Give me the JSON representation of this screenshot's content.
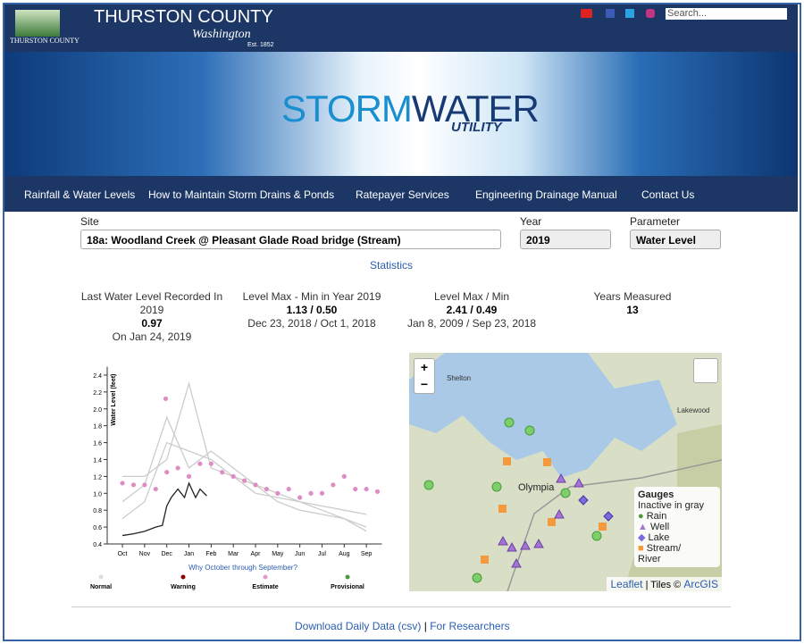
{
  "header": {
    "logo_text": "THURSTON COUNTY",
    "title": "THURSTON COUNTY",
    "subtitle": "Washington",
    "established": "Est. 1852",
    "search_placeholder": "Search..."
  },
  "banner": {
    "parts": [
      "STORM",
      "WATER"
    ],
    "line2": "UTILITY"
  },
  "nav": [
    "Rainfall & Water Levels",
    "How to Maintain Storm Drains & Ponds",
    "Ratepayer Services",
    "Engineering Drainage Manual",
    "Contact Us"
  ],
  "form": {
    "site_label": "Site",
    "site_value": "18a: Woodland Creek @ Pleasant Glade Road bridge (Stream)",
    "year_label": "Year",
    "year_value": "2019",
    "parameter_label": "Parameter",
    "parameter_value": "Water Level"
  },
  "statistics_link": "Statistics",
  "stats": [
    {
      "label": "Last Water Level Recorded In 2019",
      "value": "0.97",
      "detail": "On Jan 24, 2019"
    },
    {
      "label": "Level Max - Min in Year 2019",
      "value": "1.13 / 0.50",
      "detail": "Dec 23, 2018 / Oct 1, 2018"
    },
    {
      "label": "Level Max / Min",
      "value": "2.41 / 0.49",
      "detail": "Jan 8, 2009 / Sep 23, 2018"
    },
    {
      "label": "Years Measured",
      "value": "13"
    }
  ],
  "chart": {
    "type": "line",
    "y_label": "Water Level (feet)",
    "ylim": [
      0.4,
      2.5
    ],
    "yticks": [
      0.4,
      0.6,
      0.8,
      {
        "value": 1,
        "label": "1.0"
      },
      1.2,
      1.4,
      1.6,
      1.8,
      {
        "value": 2,
        "label": "2.0"
      },
      2.2,
      2.4
    ],
    "xlim": [
      -0.3,
      11.7
    ],
    "xticks": [
      {
        "value": 0,
        "label": "Oct"
      },
      {
        "value": 1,
        "label": "Nov"
      },
      {
        "value": 2,
        "label": "Dec"
      },
      {
        "value": 3,
        "label": "Jan"
      },
      {
        "value": 4,
        "label": "Feb"
      },
      {
        "value": 5,
        "label": "Mar"
      },
      {
        "value": 6,
        "label": "Apr"
      },
      {
        "value": 7,
        "label": "May"
      },
      {
        "value": 8,
        "label": "Jun"
      },
      {
        "value": 9,
        "label": "Jul"
      },
      {
        "value": 10,
        "label": "Aug"
      },
      {
        "value": 11,
        "label": "Sep"
      }
    ],
    "series": [
      {
        "color": "#cccccc",
        "style": "line",
        "x": [
          0,
          1,
          2,
          3,
          4,
          5,
          6,
          7,
          8,
          9,
          10,
          11
        ],
        "values": [
          0.7,
          0.9,
          1.6,
          1.5,
          1.4,
          1.2,
          1.1,
          0.9,
          0.8,
          0.75,
          0.7,
          0.6
        ]
      },
      {
        "color": "#cccccc",
        "style": "line",
        "x": [
          0,
          1,
          2,
          3,
          4,
          5,
          6,
          7,
          8,
          9,
          10,
          11
        ],
        "values": [
          0.9,
          1.1,
          1.9,
          1.3,
          1.5,
          1.3,
          1.1,
          1.0,
          0.9,
          0.85,
          0.8,
          0.75
        ]
      },
      {
        "color": "#cccccc",
        "style": "line",
        "x": [
          0,
          1,
          2,
          3,
          4,
          5,
          6,
          7,
          8,
          9,
          10,
          11
        ],
        "values": [
          1.2,
          1.2,
          1.4,
          2.3,
          1.3,
          1.2,
          1.0,
          0.95,
          0.9,
          0.8,
          0.7,
          0.55
        ]
      },
      {
        "color": "#e08cc4",
        "style": "dots",
        "x": [
          0,
          0.5,
          1,
          1.5,
          1.95,
          2,
          2.5,
          3,
          3.5,
          4,
          4.5,
          5,
          5.5,
          6,
          6.5,
          7,
          7.5,
          8,
          8.5,
          9,
          9.5,
          10,
          10.5,
          11,
          11.5
        ],
        "values": [
          1.12,
          1.1,
          1.1,
          1.05,
          2.12,
          1.25,
          1.3,
          1.2,
          1.35,
          1.35,
          1.25,
          1.2,
          1.15,
          1.1,
          1.05,
          1.0,
          1.05,
          0.95,
          1.0,
          1.0,
          1.1,
          1.2,
          1.05,
          1.05,
          1.02
        ]
      },
      {
        "color": "#222222",
        "style": "line",
        "x": [
          0,
          0.5,
          1,
          1.5,
          1.8,
          2,
          2.2,
          2.5,
          2.8,
          3,
          3.3,
          3.5,
          3.8
        ],
        "values": [
          0.5,
          0.52,
          0.55,
          0.6,
          0.62,
          0.85,
          0.95,
          1.05,
          0.95,
          1.12,
          0.95,
          1.05,
          0.97
        ]
      }
    ],
    "link": "Why October through September?",
    "legend": [
      {
        "label": "Normal",
        "color": "#dddddd"
      },
      {
        "label": "Warning",
        "color": "#8b0000"
      },
      {
        "label": "Estimate",
        "color": "#e59bc9"
      },
      {
        "label": "Provisional",
        "color": "#4a9a3a"
      }
    ]
  },
  "map": {
    "places": [
      "Shelton",
      "Olympia",
      "Lakewood"
    ],
    "zoom_in": "+",
    "zoom_out": "−",
    "legend_title": "Gauges",
    "legend_subtitle": "Inactive in gray",
    "legend_items": [
      "Rain",
      "Well",
      "Lake",
      "Stream/ River"
    ],
    "attribution": [
      "Leaflet",
      "| Tiles ©",
      "ArcGIS"
    ]
  },
  "footer": {
    "download": "Download Daily Data (csv)",
    "separator": "|",
    "researchers": "For Researchers"
  }
}
